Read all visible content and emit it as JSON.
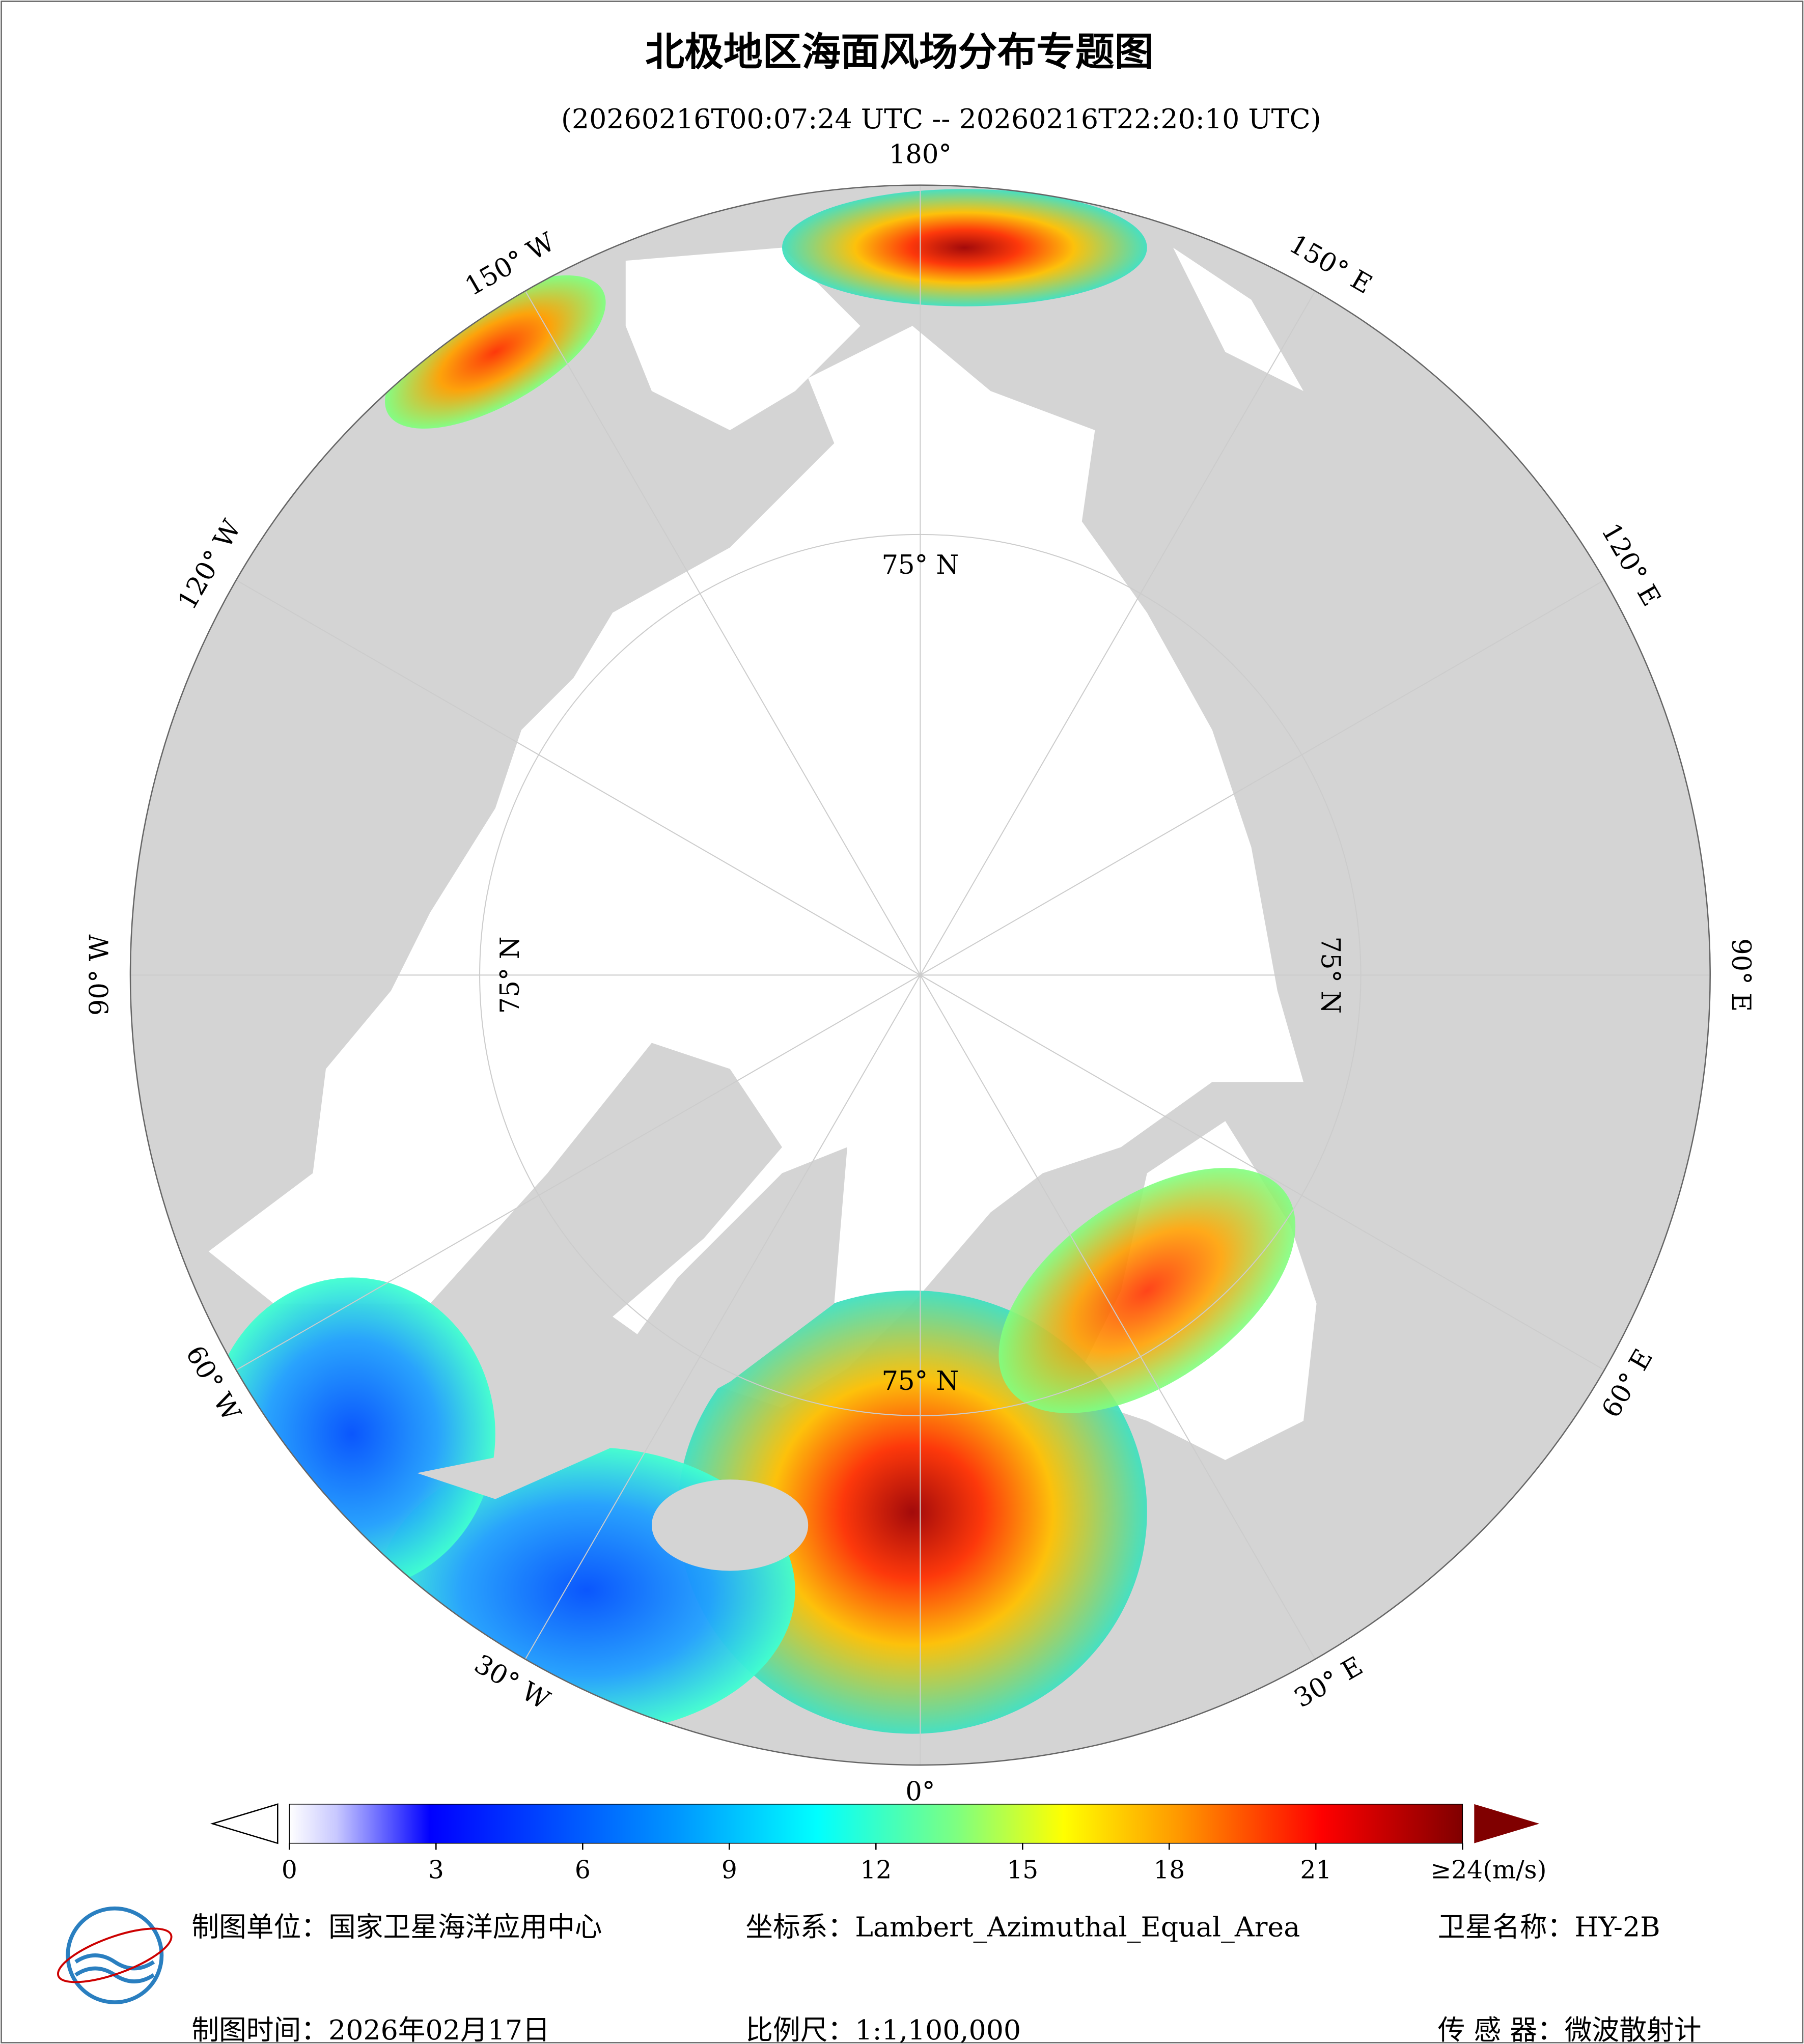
{
  "title": "北极地区海面风场分布专题图",
  "subtitle": "(20260216T00:07:24 UTC -- 20260216T22:20:10 UTC)",
  "map": {
    "lon_labels": [
      "180°",
      "150° E",
      "120° E",
      "90° E",
      "60° E",
      "30° E",
      "0°",
      "30° W",
      "60° W",
      "90° W",
      "120° W",
      "150° W"
    ],
    "lat_labels": [
      "75° N",
      "75° N",
      "75° N",
      "75° N"
    ]
  },
  "colorbar": {
    "ticks": [
      0,
      3,
      6,
      9,
      12,
      15,
      18,
      21,
      {
        "value": 24,
        "label": "≥24(m/s)"
      }
    ]
  },
  "footer": {
    "unit": "制图单位：国家卫星海洋应用中心",
    "crs": "坐标系：Lambert_Azimuthal_Equal_Area",
    "satellite": "卫星名称：HY-2B",
    "date": "制图时间：2026年02月17日",
    "scale": "比例尺：1:1,100,000",
    "sensor": "传 感 器：微波散射计"
  }
}
